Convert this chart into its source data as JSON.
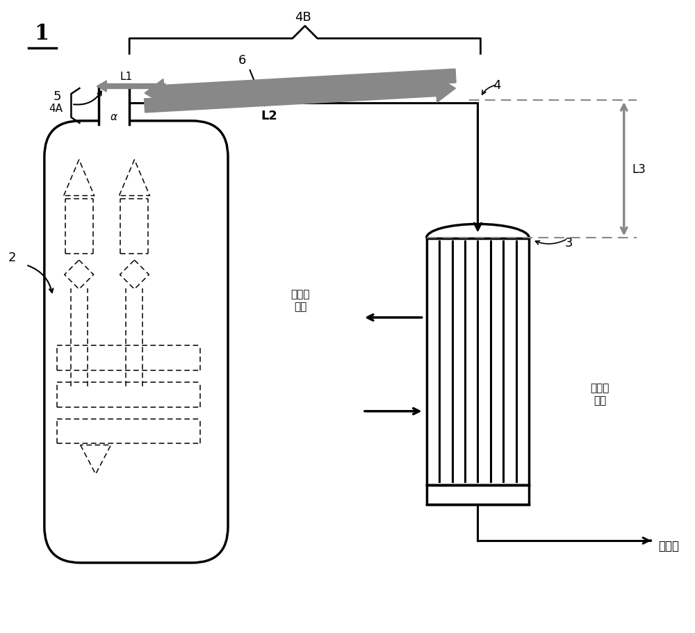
{
  "bg_color": "#ffffff",
  "label_1": "1",
  "label_2": "2",
  "label_3": "3",
  "label_4": "4",
  "label_4A": "4A",
  "label_4B": "4B",
  "label_5": "5",
  "label_6": "6",
  "label_L1": "L1",
  "label_L2": "L2",
  "label_L3": "L3",
  "label_alpha": "α",
  "label_refrig_out": "制冷剂\n出口",
  "label_refrig_in": "制冷剂\n入口",
  "label_cooling_tower": "骄冷塔",
  "arrow_color": "#888888",
  "line_color": "#000000",
  "dashed_color": "#888888"
}
